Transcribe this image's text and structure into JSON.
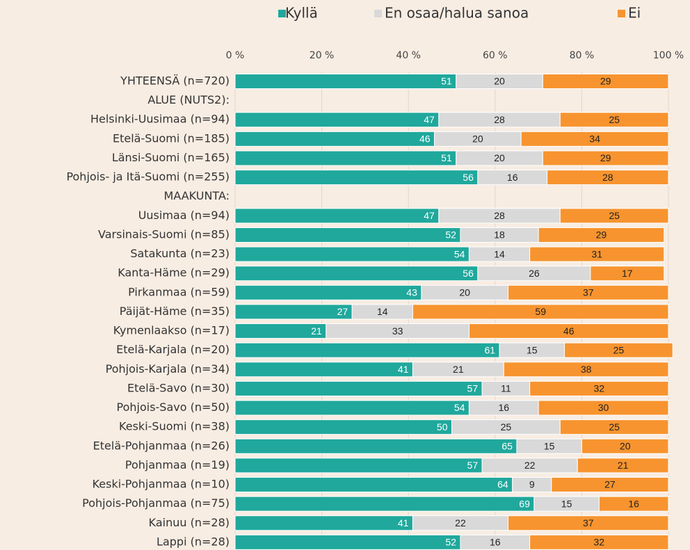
{
  "chart_data": {
    "type": "stacked_bar_horizontal",
    "categories": [
      "YHTEENSÄ (n=720)",
      "ALUE (NUTS2):",
      "Helsinki-Uusimaa (n=94)",
      "Etelä-Suomi (n=185)",
      "Länsi-Suomi (n=165)",
      "Pohjois- ja Itä-Suomi (n=255)",
      "MAAKUNTA:",
      "Uusimaa (n=94)",
      "Varsinais-Suomi (n=85)",
      "Satakunta (n=23)",
      "Kanta-Häme (n=29)",
      "Pirkanmaa (n=59)",
      "Päijät-Häme (n=35)",
      "Kymenlaakso (n=17)",
      "Etelä-Karjala (n=20)",
      "Pohjois-Karjala (n=34)",
      "Etelä-Savo (n=30)",
      "Pohjois-Savo (n=50)",
      "Keski-Suomi (n=38)",
      "Etelä-Pohjanmaa (n=26)",
      "Pohjanmaa (n=19)",
      "Keski-Pohjanmaa (n=10)",
      "Pohjois-Pohjanmaa (n=75)",
      "Kainuu (n=28)",
      "Lappi (n=28)"
    ],
    "series": [
      {
        "name": "Kyllä",
        "color": "#20a89c",
        "values": [
          51,
          null,
          47,
          46,
          51,
          56,
          null,
          47,
          52,
          54,
          56,
          43,
          27,
          21,
          61,
          41,
          57,
          54,
          50,
          65,
          57,
          64,
          69,
          41,
          52
        ]
      },
      {
        "name": "En osaa/halua sanoa",
        "color": "#d9d9d9",
        "values": [
          20,
          null,
          28,
          20,
          20,
          16,
          null,
          28,
          18,
          14,
          26,
          20,
          14,
          33,
          15,
          21,
          11,
          16,
          25,
          15,
          22,
          9,
          15,
          22,
          16
        ]
      },
      {
        "name": "Ei",
        "color": "#f7942f",
        "values": [
          29,
          null,
          25,
          34,
          29,
          28,
          null,
          25,
          29,
          31,
          17,
          37,
          59,
          46,
          25,
          38,
          32,
          30,
          25,
          20,
          21,
          27,
          16,
          37,
          32
        ]
      }
    ],
    "xlim": [
      0,
      100
    ],
    "xticks": [
      {
        "value": 0,
        "label": "0 %"
      },
      {
        "value": 20,
        "label": "20 %"
      },
      {
        "value": 40,
        "label": "40 %"
      },
      {
        "value": 60,
        "label": "60 %"
      },
      {
        "value": 80,
        "label": "80 %"
      },
      {
        "value": 100,
        "label": "100 %"
      }
    ],
    "grid": true,
    "legend": "top"
  }
}
